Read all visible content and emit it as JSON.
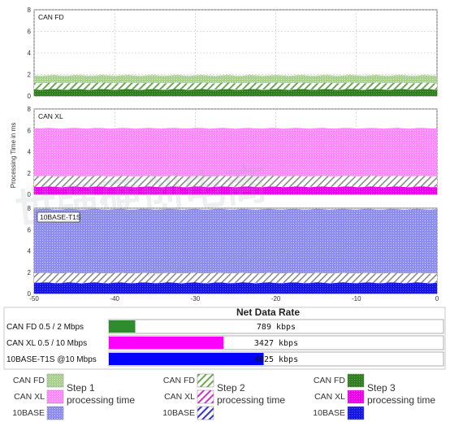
{
  "chart_data": [
    {
      "type": "area",
      "panel": "CAN FD",
      "ylabel": "Processing Time in ms",
      "ylim": [
        0,
        8
      ],
      "yticks": [
        "0",
        "2",
        "4",
        "6",
        "8"
      ],
      "xlim": [
        -50,
        0
      ],
      "xticks": [
        "-50",
        "-40",
        "-30",
        "-20",
        "-10",
        "0"
      ],
      "series": [
        {
          "step": "Step 1",
          "values": [
            0.7
          ]
        },
        {
          "step": "Step 2",
          "values": [
            0.6
          ]
        },
        {
          "step": "Step 3",
          "values": [
            0.6
          ]
        }
      ]
    },
    {
      "type": "area",
      "panel": "CAN XL",
      "ylim": [
        0,
        8
      ],
      "series": [
        {
          "step": "Step 1",
          "values": [
            4.5
          ]
        },
        {
          "step": "Step 2",
          "values": [
            1.0
          ]
        },
        {
          "step": "Step 3",
          "values": [
            0.7
          ]
        }
      ]
    },
    {
      "type": "area",
      "panel": "10BASE-T1S",
      "ylim": [
        0,
        8
      ],
      "series": [
        {
          "step": "Step 1",
          "values": [
            6.0
          ]
        },
        {
          "step": "Step 2",
          "values": [
            0.9
          ]
        },
        {
          "step": "Step 3",
          "values": [
            1.0
          ]
        }
      ]
    },
    {
      "type": "bar",
      "title": "Net Data Rate",
      "categories": [
        "CAN FD 0.5 / 2 Mbps",
        "CAN XL 0.5 / 10 Mbps",
        "10BASE-T1S @10 Mbps"
      ],
      "values": [
        789,
        3427,
        4625
      ],
      "value_labels": [
        "789 kbps",
        "3427 kbps",
        "4625 kbps"
      ],
      "max": 10000
    }
  ],
  "legend": {
    "rows": [
      "CAN FD",
      "CAN XL",
      "10BASE"
    ],
    "groups": [
      {
        "title_line1": "Step 1",
        "title_line2": "processing time"
      },
      {
        "title_line1": "Step 2",
        "title_line2": "processing time"
      },
      {
        "title_line1": "Step 3",
        "title_line2": "processing time"
      }
    ]
  },
  "colors": {
    "canfd_step1": "#a9d08e",
    "canfd_step2": "#6aa84f",
    "canfd_step3": "#38761d",
    "canxl_step1": "#ff80ff",
    "canxl_step2": "#cc33cc",
    "canxl_step3": "#ff00ff",
    "t1s_step1": "#8080ff",
    "t1s_step2": "#3333cc",
    "t1s_step3": "#0000ff",
    "canfd_rate": "#2e8b2e",
    "canxl_rate": "#ff00ff",
    "t1s_rate": "#0000ff"
  },
  "watermark": [
    "世强硬创电商",
    "www.sekorm.com"
  ]
}
